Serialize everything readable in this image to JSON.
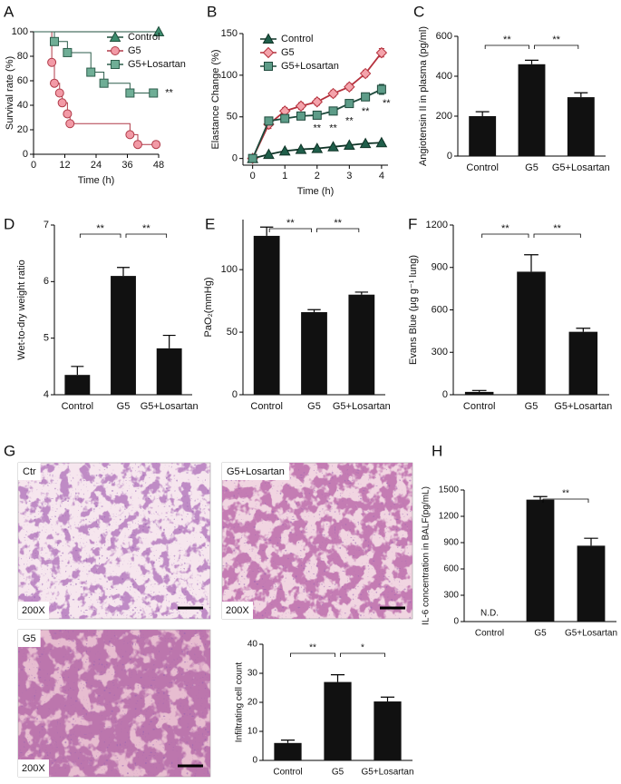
{
  "chart_data": [
    {
      "panel": "A",
      "type": "line",
      "step": true,
      "xlabel": "Time (h)",
      "ylabel": "Survival rate (%)",
      "xlim": [
        0,
        48
      ],
      "xticks": [
        0,
        12,
        24,
        36,
        48
      ],
      "ylim": [
        0,
        100
      ],
      "yticks": [
        0,
        20,
        40,
        60,
        80,
        100
      ],
      "legend": "upper right",
      "series": [
        {
          "name": "Control",
          "marker": "triangle",
          "color": "#3d8c6e",
          "edge_color": "#1f4f3c",
          "x": [
            48
          ],
          "values": [
            100
          ]
        },
        {
          "name": "G5",
          "marker": "circle",
          "color": "#f29aa6",
          "edge_color": "#b03a48",
          "x": [
            7,
            8,
            10,
            11,
            13,
            14,
            37,
            40,
            47
          ],
          "values": [
            75,
            58,
            50,
            42,
            33,
            25,
            16,
            8,
            8
          ]
        },
        {
          "name": "G5+Losartan",
          "marker": "square",
          "color": "#6fae96",
          "edge_color": "#2d5e4c",
          "x": [
            8,
            13,
            22,
            27,
            37,
            46
          ],
          "values": [
            92,
            83,
            67,
            58,
            50,
            50
          ]
        }
      ],
      "annotations": [
        {
          "text": "**",
          "x": 52,
          "y": 50
        }
      ]
    },
    {
      "panel": "B",
      "type": "line",
      "xlabel": "Time (h)",
      "ylabel": "Elastance Change (%)",
      "x": [
        0,
        0.5,
        1,
        1.5,
        2,
        2.5,
        3,
        3.5,
        4
      ],
      "xlim": [
        -0.3,
        4.2
      ],
      "xticks": [
        0,
        1,
        2,
        3,
        4
      ],
      "ylim": [
        -8,
        150
      ],
      "yticks": [
        0,
        50,
        100,
        150
      ],
      "legend": "upper left",
      "series": [
        {
          "name": "Control",
          "marker": "triangle",
          "color": "#1f5e4a",
          "edge_color": "#0f3326",
          "values": [
            0,
            5,
            9,
            11,
            12,
            14,
            16,
            18,
            19
          ],
          "errors": [
            1,
            1,
            1,
            1,
            1,
            1,
            1,
            1,
            1
          ]
        },
        {
          "name": "G5",
          "marker": "diamond",
          "color": "#f4a3ab",
          "edge_color": "#b5313d",
          "values": [
            0,
            41,
            57,
            63,
            68,
            78,
            86,
            102,
            127
          ],
          "errors": [
            2,
            5,
            4,
            4,
            4,
            4,
            4,
            4,
            5
          ]
        },
        {
          "name": "G5+Losartan",
          "marker": "square",
          "color": "#5d9c88",
          "edge_color": "#1f4a3c",
          "values": [
            0,
            45,
            48,
            51,
            52,
            57,
            66,
            74,
            83
          ],
          "errors": [
            2,
            4,
            4,
            3,
            3,
            3,
            4,
            4,
            6
          ]
        }
      ],
      "annotations": [
        {
          "text": "**",
          "x": 2,
          "y": 36
        },
        {
          "text": "**",
          "x": 2.5,
          "y": 36
        },
        {
          "text": "**",
          "x": 3,
          "y": 45
        },
        {
          "text": "**",
          "x": 3.5,
          "y": 56
        },
        {
          "text": "**",
          "x": 4.15,
          "y": 66
        }
      ]
    },
    {
      "panel": "C",
      "type": "bar",
      "ylabel": "Angiotensin II in plasma (pg/ml)",
      "color": "#111111",
      "categories": [
        "Control",
        "G5",
        "G5+Losartan"
      ],
      "values": [
        200,
        460,
        295
      ],
      "errors": [
        22,
        20,
        22
      ],
      "ylim": [
        0,
        600
      ],
      "yticks": [
        0,
        200,
        400,
        600
      ],
      "comparisons": [
        {
          "from": 0,
          "to": 1,
          "label": "**"
        },
        {
          "from": 1,
          "to": 2,
          "label": "**"
        }
      ]
    },
    {
      "panel": "D",
      "type": "bar",
      "ylabel": "Wet-to-dry weight ratio",
      "color": "#111111",
      "categories": [
        "Control",
        "G5",
        "G5+Losartan"
      ],
      "values": [
        4.35,
        6.1,
        4.82
      ],
      "errors": [
        0.15,
        0.15,
        0.23
      ],
      "ylim": [
        4,
        7
      ],
      "yticks": [
        4,
        5,
        6,
        7
      ],
      "comparisons": [
        {
          "from": 0,
          "to": 1,
          "label": "**"
        },
        {
          "from": 1,
          "to": 2,
          "label": "**"
        }
      ]
    },
    {
      "panel": "E",
      "type": "bar",
      "ylabel": "PaO₂(mmHg)",
      "color": "#111111",
      "categories": [
        "Control",
        "G5",
        "G5+Losartan"
      ],
      "values": [
        127,
        66,
        80
      ],
      "errors": [
        7,
        2,
        2
      ],
      "ylim": [
        0,
        140
      ],
      "yticks": [
        0,
        50,
        100
      ],
      "comparisons": [
        {
          "from": 0,
          "to": 1,
          "label": "**"
        },
        {
          "from": 1,
          "to": 2,
          "label": "**"
        }
      ]
    },
    {
      "panel": "F",
      "type": "bar",
      "ylabel": "Evans Blue (μg g⁻¹ lung)",
      "color": "#111111",
      "categories": [
        "Control",
        "G5",
        "G5+Losartan"
      ],
      "values": [
        20,
        870,
        445
      ],
      "errors": [
        10,
        120,
        25
      ],
      "ylim": [
        0,
        1200
      ],
      "yticks": [
        0,
        300,
        600,
        900,
        1200
      ],
      "comparisons": [
        {
          "from": 0,
          "to": 1,
          "label": "**"
        },
        {
          "from": 1,
          "to": 2,
          "label": "**"
        }
      ]
    },
    {
      "panel": "H",
      "type": "bar",
      "ylabel": "IL-6 concentration in BALF(pg/mL)",
      "color": "#111111",
      "categories": [
        "Control",
        "G5",
        "G5+Losartan"
      ],
      "values": [
        null,
        1390,
        865
      ],
      "value_labels": [
        "N.D.",
        null,
        null
      ],
      "errors": [
        null,
        35,
        85
      ],
      "ylim": [
        0,
        1500
      ],
      "yticks": [
        0,
        300,
        600,
        900,
        1200,
        1500
      ],
      "comparisons": [
        {
          "from": 1,
          "to": 2,
          "label": "**"
        }
      ]
    },
    {
      "type": "bar",
      "ylabel": "Infiltrating cell count",
      "color": "#111111",
      "categories": [
        "Control",
        "G5",
        "G5+Losartan"
      ],
      "values": [
        6,
        27,
        20.3
      ],
      "errors": [
        1,
        2.5,
        1.5
      ],
      "ylim": [
        0,
        40
      ],
      "yticks": [
        0,
        10,
        20,
        30,
        40
      ],
      "comparisons": [
        {
          "from": 0,
          "to": 1,
          "label": "**"
        },
        {
          "from": 1,
          "to": 2,
          "label": "*"
        }
      ]
    }
  ],
  "micrographs": {
    "panel": "G",
    "images": [
      {
        "label": "Ctr",
        "magnification": "200X"
      },
      {
        "label": "G5+Losartan",
        "magnification": "200X"
      },
      {
        "label": "G5",
        "magnification": "200X"
      }
    ]
  }
}
